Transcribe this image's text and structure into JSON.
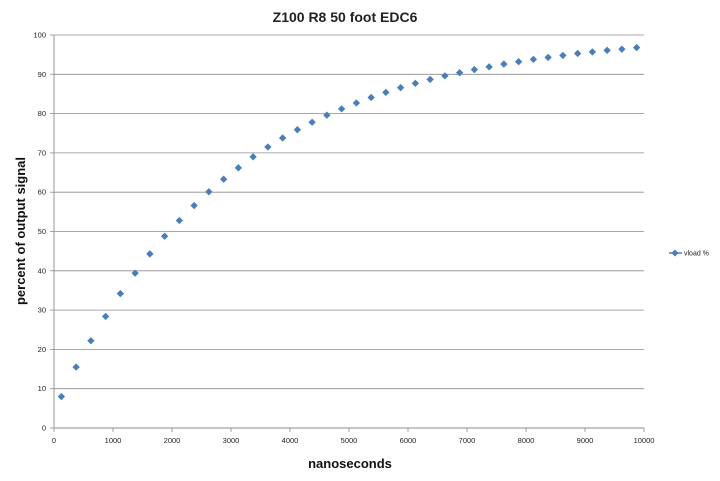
{
  "chart_data": {
    "type": "scatter",
    "title": "Z100 R8 50 foot EDC6",
    "xlabel": "nanoseconds",
    "ylabel": "percent of output signal",
    "xlim": [
      0,
      10000
    ],
    "ylim": [
      0,
      100
    ],
    "x_ticks": [
      0,
      1000,
      2000,
      3000,
      4000,
      5000,
      6000,
      7000,
      8000,
      9000,
      10000
    ],
    "y_ticks": [
      0,
      10,
      20,
      30,
      40,
      50,
      60,
      70,
      80,
      90,
      100
    ],
    "grid": "horizontal",
    "legend_position": "right",
    "marker": "diamond",
    "series": [
      {
        "name": "vload %",
        "color": "#4a7ebb",
        "x": [
          125,
          375,
          625,
          875,
          1125,
          1375,
          1625,
          1875,
          2125,
          2375,
          2625,
          2875,
          3125,
          3375,
          3625,
          3875,
          4125,
          4375,
          4625,
          4875,
          5125,
          5375,
          5625,
          5875,
          6125,
          6375,
          6625,
          6875,
          7125,
          7375,
          7625,
          7875,
          8125,
          8375,
          8625,
          8875,
          9125,
          9375,
          9625,
          9875
        ],
        "y": [
          8,
          15.5,
          22.2,
          28.4,
          34.2,
          39.4,
          44.3,
          48.8,
          52.8,
          56.6,
          60.1,
          63.3,
          66.2,
          69,
          71.5,
          73.8,
          75.9,
          77.8,
          79.6,
          81.2,
          82.7,
          84.1,
          85.4,
          86.6,
          87.7,
          88.7,
          89.6,
          90.4,
          91.2,
          91.9,
          92.6,
          93.2,
          93.8,
          94.3,
          94.8,
          95.3,
          95.7,
          96.1,
          96.4,
          96.8
        ]
      }
    ]
  }
}
